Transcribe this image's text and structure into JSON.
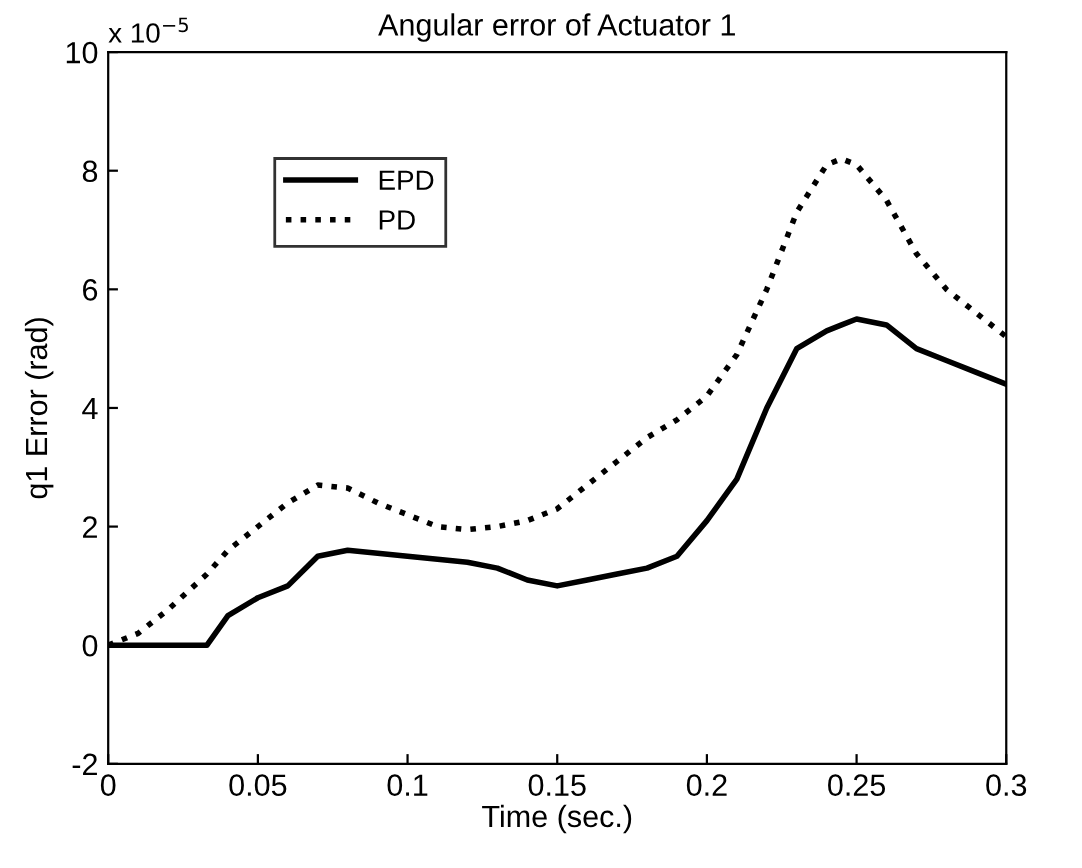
{
  "chart_data": {
    "type": "line",
    "title": "Angular error of Actuator 1",
    "xlabel": "Time (sec.)",
    "ylabel": "q1 Error (rad)",
    "annotations": [
      "x 10$^{−5}$"
    ],
    "xlim": [
      0,
      0.3
    ],
    "xticks": [
      0,
      0.05,
      0.1,
      0.15,
      0.2,
      0.25,
      0.3
    ],
    "ylim": [
      -2,
      10
    ],
    "yticks": [
      -2,
      0,
      2,
      4,
      6,
      8,
      10
    ],
    "grid": false,
    "legend": "top left",
    "marker": "none",
    "x": [
      0,
      0.01,
      0.02,
      0.033,
      0.04,
      0.05,
      0.06,
      0.07,
      0.08,
      0.09,
      0.1,
      0.11,
      0.12,
      0.13,
      0.14,
      0.15,
      0.16,
      0.17,
      0.18,
      0.19,
      0.2,
      0.21,
      0.22,
      0.23,
      0.24,
      0.245,
      0.25,
      0.26,
      0.27,
      0.28,
      0.29,
      0.3
    ],
    "series": [
      {
        "name": "EPD",
        "color": "#000000",
        "line_style": "solid",
        "values": [
          0,
          0,
          0,
          0,
          0.5,
          0.8,
          1.0,
          1.5,
          1.6,
          1.55,
          1.5,
          1.45,
          1.4,
          1.3,
          1.1,
          1.0,
          1.1,
          1.2,
          1.3,
          1.5,
          2.1,
          2.8,
          4.0,
          5.0,
          5.3,
          5.4,
          5.5,
          5.4,
          5.0,
          4.8,
          4.6,
          4.4
        ]
      },
      {
        "name": "PD",
        "color": "#000000",
        "line_style": "dotted",
        "values": [
          0,
          0.2,
          0.6,
          1.2,
          1.6,
          2.0,
          2.4,
          2.7,
          2.65,
          2.4,
          2.2,
          2.0,
          1.95,
          2.0,
          2.1,
          2.3,
          2.7,
          3.1,
          3.5,
          3.8,
          4.2,
          4.9,
          6.0,
          7.3,
          8.1,
          8.2,
          8.1,
          7.5,
          6.6,
          6.0,
          5.6,
          5.2
        ]
      }
    ]
  }
}
